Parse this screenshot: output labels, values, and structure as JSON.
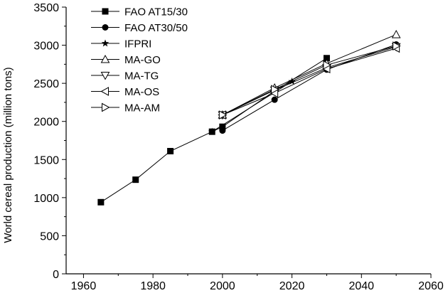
{
  "chart_data": {
    "type": "line",
    "title": "",
    "xlabel": "",
    "ylabel": "World cereal production (million tons)",
    "xlim": [
      1955,
      2060
    ],
    "ylim": [
      0,
      3500
    ],
    "xticks": [
      "1960",
      "1980",
      "2000",
      "2020",
      "2040",
      "2060"
    ],
    "yticks": [
      "0",
      "500",
      "1000",
      "1500",
      "2000",
      "2500",
      "3000",
      "3500"
    ],
    "grid": false,
    "legend_position": "top-left",
    "series": [
      {
        "name": "FAO AT15/30",
        "marker": "square-filled",
        "points": [
          [
            1965,
            940
          ],
          [
            1975,
            1235
          ],
          [
            1985,
            1610
          ],
          [
            1997,
            1865
          ],
          [
            2000,
            1930
          ],
          [
            2015,
            2400
          ],
          [
            2030,
            2830
          ]
        ]
      },
      {
        "name": "FAO AT30/50",
        "marker": "circle-filled",
        "points": [
          [
            2000,
            1880
          ],
          [
            2015,
            2285
          ],
          [
            2030,
            2680
          ],
          [
            2050,
            3010
          ]
        ]
      },
      {
        "name": "IFPRI",
        "marker": "star",
        "points": [
          [
            1997,
            1865
          ],
          [
            2020,
            2525
          ]
        ]
      },
      {
        "name": "MA-GO",
        "marker": "triangle-up-open",
        "points": [
          [
            2000,
            2085
          ],
          [
            2015,
            2440
          ],
          [
            2030,
            2760
          ],
          [
            2050,
            3140
          ]
        ]
      },
      {
        "name": "MA-TG",
        "marker": "triangle-down-open",
        "points": [
          [
            2000,
            2085
          ],
          [
            2015,
            2410
          ],
          [
            2030,
            2705
          ],
          [
            2050,
            2980
          ]
        ]
      },
      {
        "name": "MA-OS",
        "marker": "triangle-left-open",
        "points": [
          [
            2000,
            2085
          ],
          [
            2015,
            2370
          ],
          [
            2030,
            2690
          ],
          [
            2050,
            2960
          ]
        ]
      },
      {
        "name": "MA-AM",
        "marker": "triangle-right-open",
        "points": [
          [
            2000,
            2085
          ],
          [
            2015,
            2420
          ],
          [
            2030,
            2740
          ],
          [
            2050,
            2990
          ]
        ]
      }
    ]
  }
}
